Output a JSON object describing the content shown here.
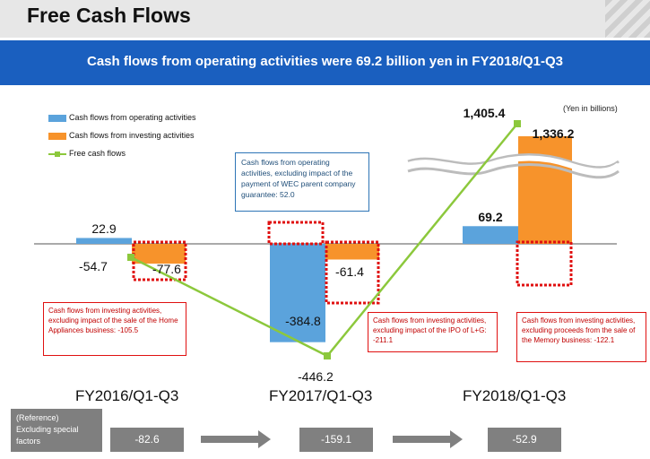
{
  "header": {
    "title": "Free Cash Flows",
    "subtitle": "Cash flows from operating activities were 69.2 billion yen in FY2018/Q1-Q3"
  },
  "unit_label": "(Yen in billions)",
  "legend": [
    {
      "label": "Cash flows from operating activities",
      "color": "#5ba3dc"
    },
    {
      "label": "Cash flows from investing activities",
      "color": "#f7932b"
    },
    {
      "label": "Free cash flows",
      "color": "#8cc83c"
    }
  ],
  "chart_data": {
    "type": "bar",
    "categories": [
      "FY2016/Q1-Q3",
      "FY2017/Q1-Q3",
      "FY2018/Q1-Q3"
    ],
    "series": [
      {
        "name": "Cash flows from operating activities",
        "values": [
          22.9,
          -384.8,
          69.2
        ],
        "labels": [
          "22.9",
          "-384.8",
          "69.2"
        ]
      },
      {
        "name": "Cash flows from investing activities",
        "values": [
          -77.6,
          -61.4,
          1336.2
        ],
        "labels": [
          "-77.6",
          "-61.4",
          "1,336.2"
        ]
      },
      {
        "name": "Free cash flows",
        "type": "line",
        "values": [
          -54.7,
          -446.2,
          1405.4
        ],
        "labels": [
          "-54.7",
          "-446.2",
          "1,405.4"
        ]
      }
    ],
    "axis_break": true
  },
  "callout": "Cash flows from operating activities, excluding impact of the payment of WEC parent company guarantee:  52.0",
  "notes": [
    "Cash flows from investing activities, excluding impact of the sale of the Home Appliances business:  -105.5",
    "Cash flows from investing activities, excluding impact of the IPO of L+G: -211.1",
    "Cash flows from investing activities, excluding proceeds from the sale of the Memory business:  -122.1"
  ],
  "reference": {
    "label": "(Reference)\nExcluding special factors",
    "values": [
      "-82.6",
      "-159.1",
      "-52.9"
    ]
  },
  "colors": {
    "operating": "#5ba3dc",
    "investing": "#f7932b",
    "fcf": "#8cc83c",
    "header": "#1a5fbf"
  }
}
